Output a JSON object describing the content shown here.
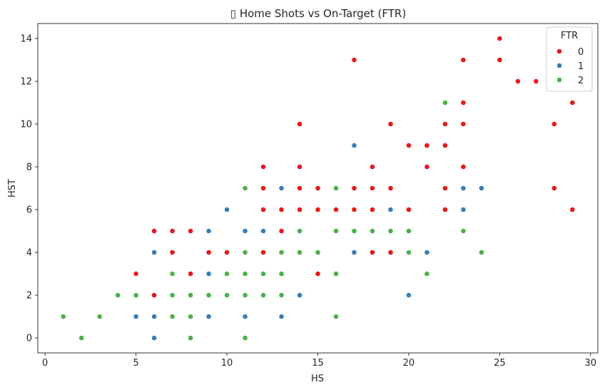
{
  "chart_data": {
    "type": "scatter",
    "title": "▯ Home Shots vs On-Target (FTR)",
    "xlabel": "HS",
    "ylabel": "HST",
    "xlim": [
      -0.4,
      30.4
    ],
    "ylim": [
      -0.7,
      14.7
    ],
    "xticks": [
      0,
      5,
      10,
      15,
      20,
      25,
      30
    ],
    "yticks": [
      0,
      2,
      4,
      6,
      8,
      10,
      12,
      14
    ],
    "grid": false,
    "legend": {
      "title": "FTR",
      "placement": "top-right"
    },
    "series": [
      {
        "name": "0",
        "color": "#e41a1c",
        "points": [
          [
            5,
            3
          ],
          [
            6,
            5
          ],
          [
            6,
            2
          ],
          [
            7,
            5
          ],
          [
            7,
            4
          ],
          [
            8,
            5
          ],
          [
            8,
            3
          ],
          [
            9,
            4
          ],
          [
            10,
            4
          ],
          [
            12,
            8
          ],
          [
            12,
            7
          ],
          [
            12,
            6
          ],
          [
            12,
            4
          ],
          [
            13,
            6
          ],
          [
            13,
            5
          ],
          [
            14,
            10
          ],
          [
            14,
            8
          ],
          [
            14,
            7
          ],
          [
            14,
            6
          ],
          [
            15,
            7
          ],
          [
            15,
            6
          ],
          [
            15,
            3
          ],
          [
            16,
            6
          ],
          [
            17,
            13
          ],
          [
            17,
            7
          ],
          [
            17,
            6
          ],
          [
            18,
            8
          ],
          [
            18,
            7
          ],
          [
            18,
            6
          ],
          [
            18,
            5
          ],
          [
            18,
            4
          ],
          [
            19,
            10
          ],
          [
            19,
            7
          ],
          [
            19,
            4
          ],
          [
            20,
            9
          ],
          [
            20,
            6
          ],
          [
            21,
            9
          ],
          [
            21,
            8
          ],
          [
            22,
            10
          ],
          [
            22,
            9
          ],
          [
            22,
            7
          ],
          [
            22,
            6
          ],
          [
            23,
            13
          ],
          [
            23,
            11
          ],
          [
            23,
            10
          ],
          [
            23,
            8
          ],
          [
            25,
            14
          ],
          [
            25,
            13
          ],
          [
            26,
            12
          ],
          [
            27,
            12
          ],
          [
            28,
            10
          ],
          [
            28,
            7
          ],
          [
            29,
            11
          ],
          [
            29,
            6
          ]
        ]
      },
      {
        "name": "1",
        "color": "#377eb8",
        "points": [
          [
            5,
            1
          ],
          [
            6,
            4
          ],
          [
            6,
            1
          ],
          [
            6,
            0
          ],
          [
            9,
            5
          ],
          [
            9,
            3
          ],
          [
            9,
            1
          ],
          [
            10,
            6
          ],
          [
            11,
            5
          ],
          [
            11,
            1
          ],
          [
            12,
            5
          ],
          [
            13,
            7
          ],
          [
            13,
            1
          ],
          [
            14,
            2
          ],
          [
            17,
            9
          ],
          [
            17,
            4
          ],
          [
            19,
            6
          ],
          [
            20,
            2
          ],
          [
            21,
            4
          ],
          [
            23,
            7
          ],
          [
            23,
            6
          ],
          [
            24,
            7
          ]
        ]
      },
      {
        "name": "2",
        "color": "#4daf4a",
        "points": [
          [
            1,
            1
          ],
          [
            2,
            0
          ],
          [
            3,
            1
          ],
          [
            4,
            2
          ],
          [
            5,
            2
          ],
          [
            7,
            3
          ],
          [
            7,
            2
          ],
          [
            7,
            1
          ],
          [
            8,
            2
          ],
          [
            8,
            1
          ],
          [
            8,
            0
          ],
          [
            9,
            2
          ],
          [
            10,
            3
          ],
          [
            10,
            2
          ],
          [
            11,
            7
          ],
          [
            11,
            4
          ],
          [
            11,
            3
          ],
          [
            11,
            2
          ],
          [
            11,
            0
          ],
          [
            12,
            3
          ],
          [
            12,
            2
          ],
          [
            13,
            4
          ],
          [
            13,
            3
          ],
          [
            13,
            2
          ],
          [
            14,
            5
          ],
          [
            14,
            4
          ],
          [
            15,
            4
          ],
          [
            16,
            7
          ],
          [
            16,
            5
          ],
          [
            16,
            3
          ],
          [
            16,
            1
          ],
          [
            17,
            5
          ],
          [
            18,
            5
          ],
          [
            19,
            5
          ],
          [
            20,
            5
          ],
          [
            20,
            4
          ],
          [
            21,
            3
          ],
          [
            22,
            11
          ],
          [
            23,
            5
          ],
          [
            24,
            4
          ]
        ]
      }
    ]
  }
}
